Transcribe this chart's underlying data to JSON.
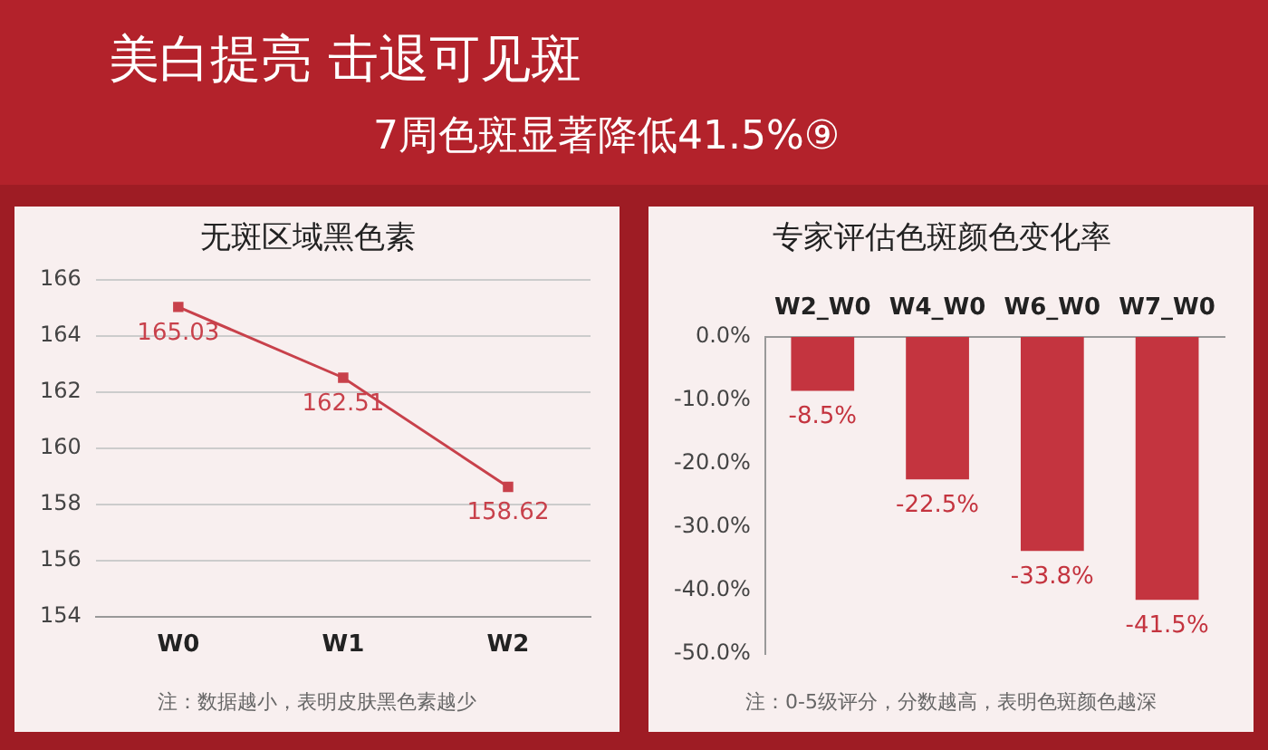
{
  "chart_data": [
    {
      "type": "other",
      "title": "美白提亮 击退可见斑",
      "subtitle": "7周色斑显著降低41.5%⑨"
    },
    {
      "type": "line",
      "title": "无斑区域黑色素",
      "categories": [
        "W0",
        "W1",
        "W2"
      ],
      "values": [
        165.03,
        162.51,
        158.62
      ],
      "color": "#c8414b",
      "ylim": [
        154,
        166
      ],
      "yticks": [
        154,
        156,
        158,
        160,
        162,
        164,
        166
      ],
      "grid": "y",
      "marker": "square",
      "data_labels": true,
      "legend": false,
      "annotations": [
        "注：数据越小，表明皮肤黑色素越少"
      ]
    },
    {
      "type": "bar",
      "title": "专家评估色斑颜色变化率",
      "categories": [
        "W2_W0",
        "W4_W0",
        "W6_W0",
        "W7_W0"
      ],
      "values": [
        -8.5,
        -22.5,
        -33.8,
        -41.5
      ],
      "value_labels": [
        "-8.5%",
        "-22.5%",
        "-33.8%",
        "-41.5%"
      ],
      "color": "#c4343f",
      "ylim": [
        -50,
        0
      ],
      "yticks": [
        {
          "value": -50,
          "label": "-50.0%"
        },
        {
          "value": -40,
          "label": "-40.0%"
        },
        {
          "value": -30,
          "label": "-30.0%"
        },
        {
          "value": -20,
          "label": "-20.0%"
        },
        {
          "value": -10,
          "label": "-10.0%"
        },
        {
          "value": 0,
          "label": "0.0%"
        }
      ],
      "grid": false,
      "legend": false,
      "annotations": [
        "注：0-5级评分，分数越高，表明色斑颜色越深"
      ]
    }
  ]
}
